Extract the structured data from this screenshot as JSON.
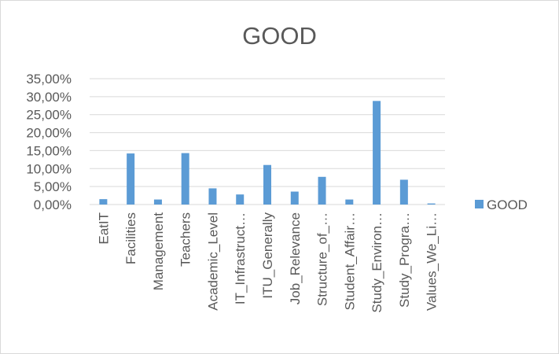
{
  "chart_data": {
    "type": "bar",
    "title": "GOOD",
    "xlabel": "",
    "ylabel": "",
    "categories": [
      "EatIT",
      "Facilities",
      "Management",
      "Teachers",
      "Academic_Level",
      "IT_Infrastruct…",
      "ITU_Generally",
      "Job_Relevance",
      "Structure_of_…",
      "Student_Affair…",
      "Study_Environ…",
      "Study_Progra…",
      "Values_We_Li…"
    ],
    "series": [
      {
        "name": "GOOD",
        "color": "#5b9bd5",
        "values": [
          1.5,
          14.2,
          1.4,
          14.3,
          4.5,
          2.8,
          11.0,
          3.6,
          7.7,
          1.4,
          28.8,
          6.9,
          0.3
        ]
      }
    ],
    "ylim": [
      0,
      35
    ],
    "yticks": [
      0,
      5,
      10,
      15,
      20,
      25,
      30,
      35
    ],
    "ytick_labels": [
      "0,00%",
      "5,00%",
      "10,00%",
      "15,00%",
      "20,00%",
      "25,00%",
      "30,00%",
      "35,00%"
    ],
    "grid": true,
    "legend_position": "right"
  }
}
